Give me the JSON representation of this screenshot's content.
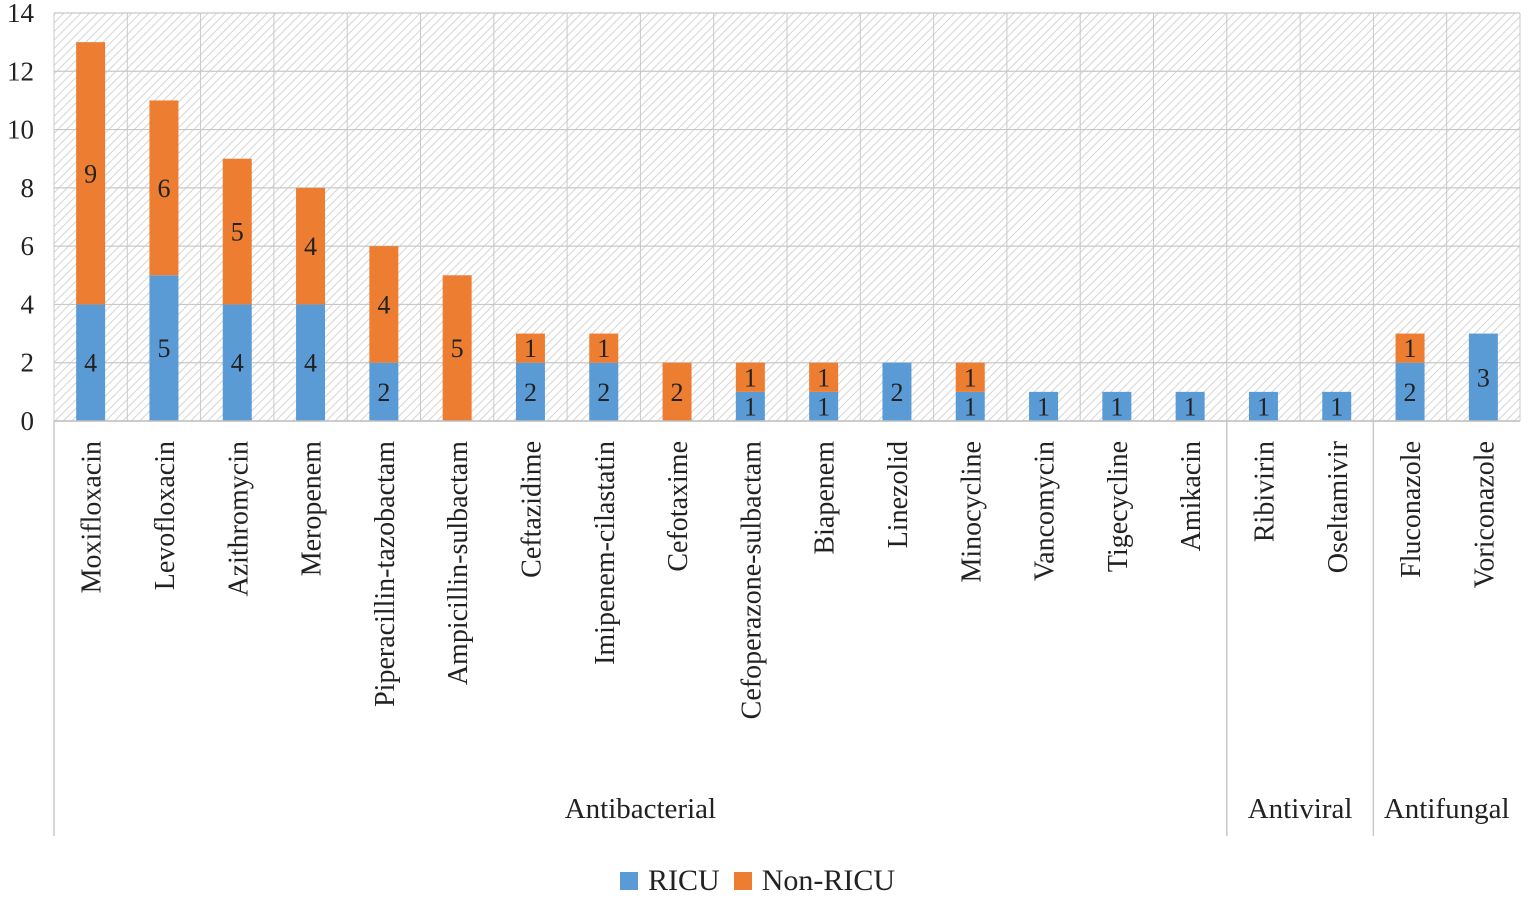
{
  "chart_data": {
    "type": "bar",
    "stacked": true,
    "title": "",
    "xlabel": "",
    "ylabel": "",
    "ylim": [
      0,
      14
    ],
    "yticks": [
      0,
      2,
      4,
      6,
      8,
      10,
      12,
      14
    ],
    "grid": true,
    "legend_position": "bottom",
    "categories": [
      "Moxifloxacin",
      "Levofloxacin",
      "Azithromycin",
      "Meropenem",
      "Piperacillin-tazobactam",
      "Ampicillin-sulbactam",
      "Ceftazidime",
      "Imipenem-cilastatin",
      "Cefotaxime",
      "Cefoperazone-sulbactam",
      "Biapenem",
      "Linezolid",
      "Minocycline",
      "Vancomycin",
      "Tigecycline",
      "Amikacin",
      "Ribivirin",
      "Oseltamivir",
      "Fluconazole",
      "Voriconazole"
    ],
    "groups": [
      {
        "label": "Antibacterial",
        "count": 16
      },
      {
        "label": "Antiviral",
        "count": 2
      },
      {
        "label": "Antifungal",
        "count": 2
      }
    ],
    "series": [
      {
        "name": "RICU",
        "color": "#5b9bd5",
        "values": [
          4,
          5,
          4,
          4,
          2,
          0,
          2,
          2,
          0,
          1,
          1,
          2,
          1,
          1,
          1,
          1,
          1,
          1,
          2,
          3
        ]
      },
      {
        "name": "Non-RICU",
        "color": "#ed7d31",
        "values": [
          9,
          6,
          5,
          4,
          4,
          5,
          1,
          1,
          2,
          1,
          1,
          0,
          1,
          0,
          0,
          0,
          0,
          0,
          1,
          0
        ]
      }
    ]
  }
}
